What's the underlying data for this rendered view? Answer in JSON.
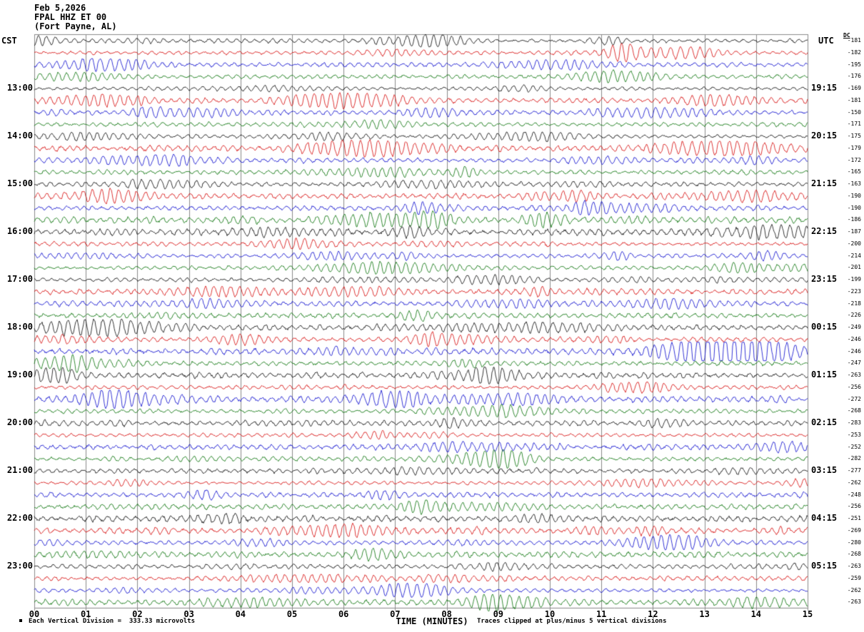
{
  "header": {
    "date": "Feb 5,2026",
    "station": "FPAL HHZ ET 00",
    "location": "(Fort Payne, AL)"
  },
  "left_axis": {
    "label": "CST",
    "times": [
      "13:00",
      "14:00",
      "15:00",
      "16:00",
      "17:00",
      "18:00",
      "19:00",
      "20:00",
      "21:00",
      "22:00",
      "23:00"
    ]
  },
  "right_axis": {
    "label": "UTC",
    "dc_label": "DC",
    "times": [
      "19:15",
      "20:15",
      "21:15",
      "22:15",
      "23:15",
      "00:15",
      "01:15",
      "02:15",
      "03:15",
      "04:15",
      "05:15"
    ]
  },
  "x_axis": {
    "label": "TIME (MINUTES)",
    "ticks": [
      "00",
      "01",
      "02",
      "03",
      "04",
      "05",
      "06",
      "07",
      "08",
      "09",
      "10",
      "11",
      "12",
      "13",
      "14",
      "15"
    ]
  },
  "footer": {
    "scale_note": "Each Vertical Division =  333.33 microvolts",
    "clip_note": "Traces clipped at plus/minus 5 vertical divisions"
  },
  "chart_data": {
    "type": "line",
    "subtype": "seismogram-helicorder",
    "title": "FPAL HHZ ET 00 (Fort Payne, AL) Feb 5,2026",
    "xlabel": "TIME (MINUTES)",
    "x_range_minutes": [
      0,
      15
    ],
    "rows": 48,
    "row_duration_minutes": 15,
    "first_row_start_cst": "12:00",
    "trace_color_cycle": [
      "#000000",
      "#d40000",
      "#0000cc",
      "#006e00"
    ],
    "grid_color": "#8a8a8a",
    "cst_hour_labels": [
      "13:00",
      "14:00",
      "15:00",
      "16:00",
      "17:00",
      "18:00",
      "19:00",
      "20:00",
      "21:00",
      "22:00",
      "23:00"
    ],
    "utc_hour_labels": [
      "19:15",
      "20:15",
      "21:15",
      "22:15",
      "23:15",
      "00:15",
      "01:15",
      "02:15",
      "03:15",
      "04:15",
      "05:15"
    ],
    "dc_offsets": [
      -181,
      -182,
      -195,
      -176,
      -169,
      -181,
      -150,
      -171,
      -175,
      -179,
      -172,
      -165,
      -163,
      -190,
      -190,
      -186,
      -187,
      -200,
      -214,
      -201,
      -199,
      -223,
      -218,
      -226,
      -249,
      -246,
      -246,
      -247,
      -263,
      -256,
      -272,
      -268,
      -283,
      -253,
      -252,
      -282,
      -277,
      -262,
      -248,
      -256,
      -251,
      -269,
      -280,
      -268,
      -263,
      -259,
      -262,
      -263
    ],
    "vertical_division_microvolts": 333.33,
    "clip_divisions": 5,
    "noise_seed": 20260205,
    "events": [
      {
        "row": 1,
        "minute": 11.4,
        "width_minutes": 0.5,
        "relative_amplitude": 6.5,
        "note": "largest burst, red trace of 12:15 CST row"
      },
      {
        "row": 1,
        "minute": 12.4,
        "width_minutes": 0.9,
        "relative_amplitude": 3.5,
        "note": "coda of burst"
      },
      {
        "row": 0,
        "minute": 11.1,
        "width_minutes": 0.5,
        "relative_amplitude": 2.2,
        "note": "small burst, top black trace"
      }
    ]
  }
}
